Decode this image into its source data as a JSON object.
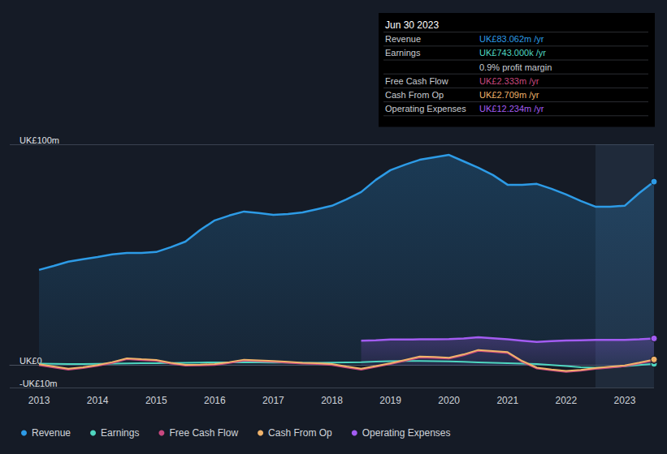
{
  "chart_data": {
    "type": "line",
    "x": [
      2013,
      2013.25,
      2013.5,
      2013.75,
      2014,
      2014.25,
      2014.5,
      2014.75,
      2015,
      2015.25,
      2015.5,
      2015.75,
      2016,
      2016.25,
      2016.5,
      2016.75,
      2017,
      2017.25,
      2017.5,
      2017.75,
      2018,
      2018.25,
      2018.5,
      2018.75,
      2019,
      2019.25,
      2019.5,
      2019.75,
      2020,
      2020.25,
      2020.5,
      2020.75,
      2021,
      2021.25,
      2021.5,
      2021.75,
      2022,
      2022.25,
      2022.5,
      2022.75,
      2023,
      2023.25,
      2023.5
    ],
    "xlim": [
      2012.5,
      2023.5
    ],
    "xticks": [
      2013,
      2014,
      2015,
      2016,
      2017,
      2018,
      2019,
      2020,
      2021,
      2022,
      2023
    ],
    "ylim": [
      -10,
      100
    ],
    "yticks": [
      {
        "value": -10,
        "label": "-UK£10m"
      },
      {
        "value": 0,
        "label": "UK£0"
      },
      {
        "value": 100,
        "label": "UK£100m"
      }
    ],
    "grid": true,
    "legend": "bottom",
    "series": [
      {
        "name": "Revenue",
        "type": "area",
        "color": "#2d9be6",
        "values": [
          43.2,
          45,
          46.9,
          48,
          49,
          50.2,
          50.9,
          50.9,
          51.3,
          53.5,
          56,
          61.2,
          65.6,
          67.8,
          69.6,
          68.9,
          68.1,
          68.5,
          69.2,
          70.7,
          72.2,
          75.1,
          78.4,
          83.9,
          88.3,
          90.8,
          93,
          94.1,
          95.2,
          92.3,
          89.4,
          86.1,
          81.7,
          81.7,
          82.1,
          79.9,
          77.3,
          74.4,
          71.8,
          71.8,
          72.2,
          78,
          83.1
        ]
      },
      {
        "name": "Earnings",
        "type": "line",
        "color": "#4fd6c0",
        "values": [
          0.8,
          0.7,
          0.6,
          0.6,
          0.7,
          0.8,
          0.9,
          1.0,
          1.0,
          1.1,
          1.2,
          1.3,
          1.4,
          1.4,
          1.5,
          1.4,
          1.3,
          1.3,
          1.2,
          1.2,
          1.3,
          1.4,
          1.5,
          1.7,
          1.9,
          2.0,
          2.0,
          1.9,
          1.8,
          1.6,
          1.4,
          1.2,
          1.0,
          0.8,
          0.6,
          0.2,
          -0.3,
          -0.8,
          -1.0,
          -0.8,
          -0.4,
          0.2,
          0.7
        ]
      },
      {
        "name": "Free Cash Flow",
        "type": "line",
        "color": "#c8487f",
        "values": [
          0.1,
          -0.9,
          -1.9,
          -1.2,
          -0.2,
          1.1,
          2.8,
          2.4,
          2.1,
          0.8,
          -0.1,
          0.0,
          0.2,
          1.1,
          2.2,
          1.9,
          1.6,
          1.2,
          0.8,
          0.6,
          0.2,
          -0.9,
          -1.9,
          -0.7,
          0.6,
          2.1,
          3.6,
          3.4,
          3.1,
          4.6,
          6.6,
          6.1,
          5.6,
          1.6,
          -1.4,
          -2.2,
          -2.9,
          -2.4,
          -1.6,
          -1.0,
          -0.4,
          0.9,
          2.3
        ]
      },
      {
        "name": "Cash From Op",
        "type": "line",
        "color": "#f0b36b",
        "values": [
          0.5,
          -0.5,
          -1.5,
          -0.8,
          0.2,
          1.5,
          3.2,
          2.8,
          2.5,
          1.2,
          0.3,
          0.4,
          0.6,
          1.5,
          2.6,
          2.3,
          2.0,
          1.6,
          1.2,
          1.0,
          0.6,
          -0.5,
          -1.5,
          -0.3,
          1.0,
          2.5,
          4.0,
          3.8,
          3.5,
          5.0,
          7.0,
          6.5,
          6.0,
          2.0,
          -1.0,
          -1.8,
          -2.5,
          -2.0,
          -1.2,
          -0.6,
          0.0,
          1.3,
          2.7
        ]
      },
      {
        "name": "Operating Expenses",
        "type": "area",
        "color": "#a35cf2",
        "values": [
          null,
          null,
          null,
          null,
          null,
          null,
          null,
          null,
          null,
          null,
          null,
          null,
          null,
          null,
          null,
          null,
          null,
          null,
          null,
          null,
          null,
          null,
          11.2,
          11.4,
          11.7,
          11.7,
          11.8,
          11.8,
          11.9,
          12.2,
          12.7,
          12.3,
          11.8,
          11.2,
          10.6,
          11.0,
          11.3,
          11.4,
          11.5,
          11.5,
          11.5,
          11.8,
          12.2
        ]
      }
    ],
    "info_box": {
      "title": "Jun 30 2023",
      "rows": [
        {
          "label": "Revenue",
          "value": "UK£83.062m /yr"
        },
        {
          "label": "Earnings",
          "value": "UK£743.000k /yr",
          "note": "0.9% profit margin"
        },
        {
          "label": "Free Cash Flow",
          "value": "UK£2.333m /yr"
        },
        {
          "label": "Cash From Op",
          "value": "UK£2.709m /yr"
        },
        {
          "label": "Operating Expenses",
          "value": "UK£12.234m /yr"
        }
      ]
    }
  }
}
